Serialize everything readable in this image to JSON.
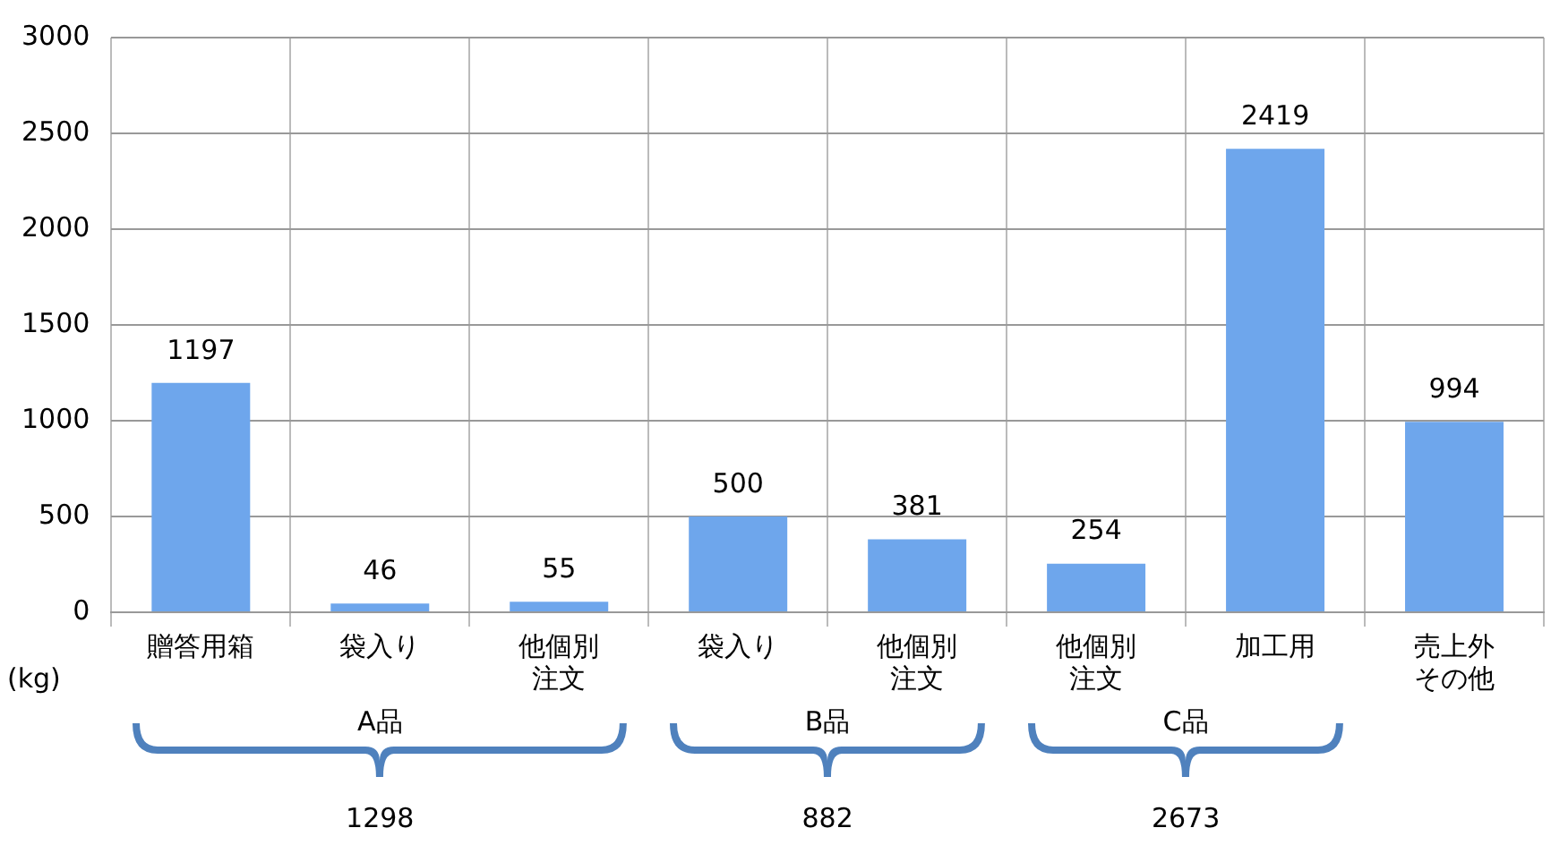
{
  "chart_data": {
    "type": "bar",
    "categories": [
      "贈答用箱",
      "袋入り",
      "他個別注文",
      "袋入り",
      "他個別注文",
      "他個別注文",
      "加工用",
      "売上外その他"
    ],
    "values": [
      1197,
      46,
      55,
      500,
      381,
      254,
      2419,
      994
    ],
    "color": "#6ea6ec",
    "ylim": [
      0,
      3000
    ],
    "yticks": [
      0,
      500,
      1000,
      1500,
      2000,
      2500,
      3000
    ],
    "grid": true,
    "data_labels": true,
    "legend": false,
    "annotations": [
      "(kg)",
      "A品",
      "1298",
      "B品",
      "882",
      "C品",
      "2673"
    ]
  }
}
